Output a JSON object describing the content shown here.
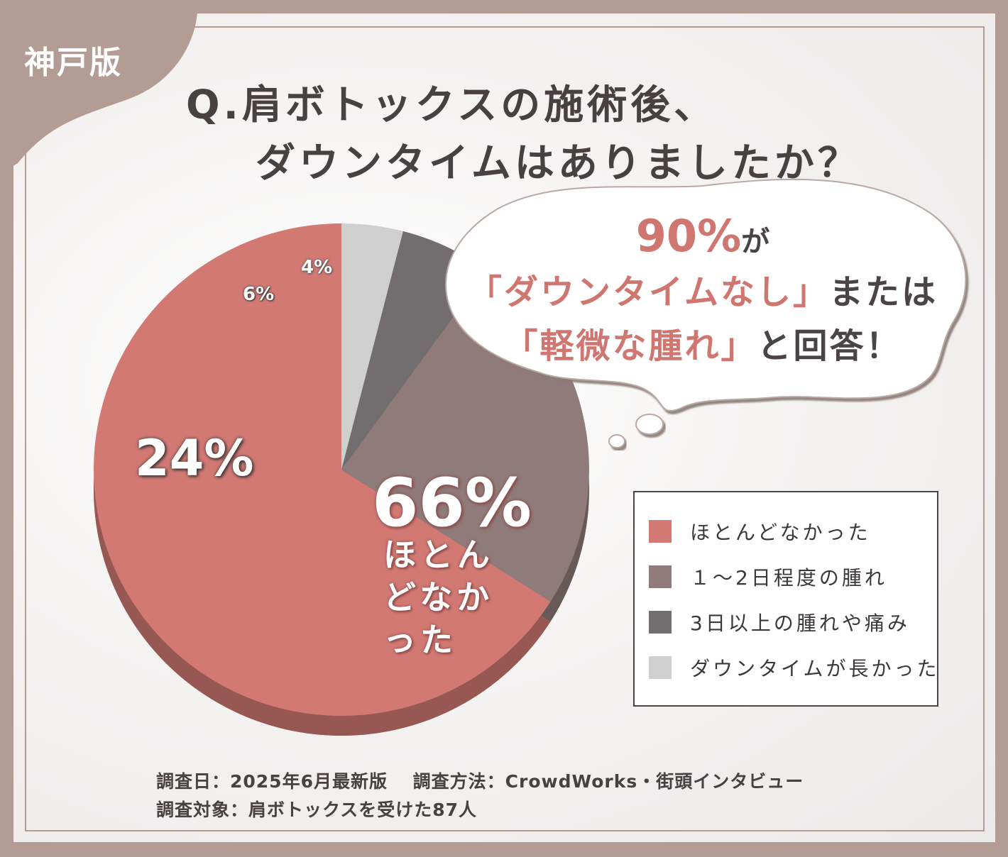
{
  "region_badge": "神戸版",
  "question": {
    "line1": "Q.肩ボトックスの施術後、",
    "line2": "ダウンタイムはありましたか？"
  },
  "callout": {
    "headline_value": "90%",
    "headline_suffix": "が",
    "line2_highlight": "「ダウンタイムなし」",
    "line2_rest": "または",
    "line3_highlight": "「軽微な腫れ」",
    "line3_rest": "と回答！"
  },
  "pie_labels": {
    "main_value": "66%",
    "main_sub": "ほとんどなかった",
    "second": "24%",
    "third": "6%",
    "fourth": "4%"
  },
  "chart_data": {
    "type": "pie",
    "labels": [
      "ほとんどなかった",
      "１～2日程度の腫れ",
      "3日以上の腫れや痛み",
      "ダウンタイムが長かった"
    ],
    "values": [
      66,
      24,
      6,
      4
    ],
    "unit": "%",
    "colors": [
      "#d27973",
      "#8f7b79",
      "#726d6e",
      "#cfcfcf"
    ],
    "legend_position": "right"
  },
  "legend": {
    "items": [
      {
        "label": "ほとんどなかった",
        "color": "#d27973"
      },
      {
        "label": "１～2日程度の腫れ",
        "color": "#8f7b79"
      },
      {
        "label": "3日以上の腫れや痛み",
        "color": "#726d6e"
      },
      {
        "label": "ダウンタイムが長かった",
        "color": "#cfcfcf"
      }
    ]
  },
  "notes": {
    "line1": "調査日：2025年6月最新版　 調査方法：CrowdWorks・街頭インタビュー",
    "line2": "調査対象：肩ボトックスを受けた87人"
  },
  "colors": {
    "frame": "#b39c94",
    "title": "#474142",
    "accent": "#cf7671"
  }
}
